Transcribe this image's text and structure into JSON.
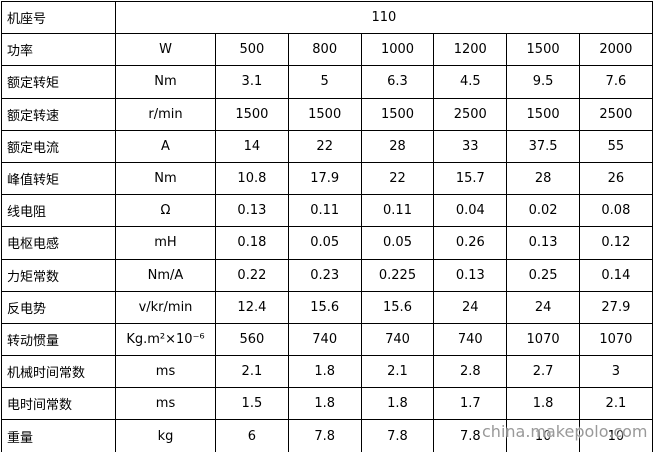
{
  "table": {
    "header": {
      "label": "机座号",
      "value": "110"
    },
    "rows": [
      [
        "功率",
        "W",
        "500",
        "800",
        "1000",
        "1200",
        "1500",
        "2000"
      ],
      [
        "额定转矩",
        "Nm",
        "3.1",
        "5",
        "6.3",
        "4.5",
        "9.5",
        "7.6"
      ],
      [
        "额定转速",
        "r/min",
        "1500",
        "1500",
        "1500",
        "2500",
        "1500",
        "2500"
      ],
      [
        "额定电流",
        "A",
        "14",
        "22",
        "28",
        "33",
        "37.5",
        "55"
      ],
      [
        "峰值转矩",
        "Nm",
        "10.8",
        "17.9",
        "22",
        "15.7",
        "28",
        "26"
      ],
      [
        "线电阻",
        "Ω",
        "0.13",
        "0.11",
        "0.11",
        "0.04",
        "0.02",
        "0.08"
      ],
      [
        "电枢电感",
        "mH",
        "0.18",
        "0.05",
        "0.05",
        "0.26",
        "0.13",
        "0.12"
      ],
      [
        "力矩常数",
        "Nm/A",
        "0.22",
        "0.23",
        "0.225",
        "0.13",
        "0.25",
        "0.14"
      ],
      [
        "反电势",
        "v/kr/min",
        "12.4",
        "15.6",
        "15.6",
        "24",
        "24",
        "27.9"
      ],
      [
        "转动惯量",
        "Kg.m²×10⁻⁶",
        "560",
        "740",
        "740",
        "740",
        "1070",
        "1070"
      ],
      [
        "机械时间常数",
        "ms",
        "2.1",
        "1.8",
        "2.1",
        "2.8",
        "2.7",
        "3"
      ],
      [
        "电时间常数",
        "ms",
        "1.5",
        "1.8",
        "1.8",
        "1.7",
        "1.8",
        "2.1"
      ],
      [
        "重量",
        "kg",
        "6",
        "7.8",
        "7.8",
        "7.8",
        "10",
        "10"
      ]
    ]
  },
  "watermark": "china.makepolo.com"
}
